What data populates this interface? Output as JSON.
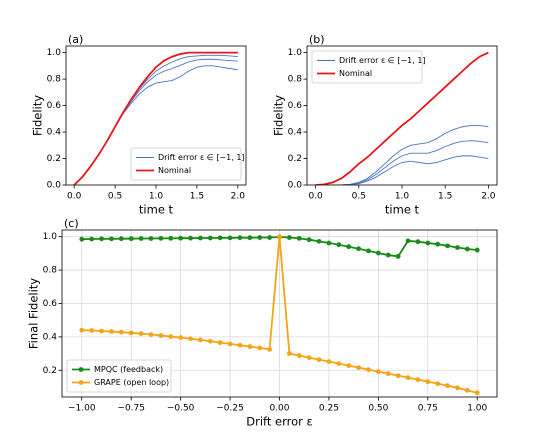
{
  "chart_data": [
    {
      "type": "line",
      "panel_label": "(a)",
      "xlabel": "time t",
      "ylabel": "Fidelity",
      "x": [
        0,
        0.1,
        0.2,
        0.3,
        0.4,
        0.5,
        0.6,
        0.7,
        0.8,
        0.9,
        1.0,
        1.1,
        1.2,
        1.3,
        1.4,
        1.5,
        1.6,
        1.7,
        1.8,
        1.9,
        2.0
      ],
      "series": [
        {
          "name": "Drift error ε ∈ [−1, 1]",
          "color": "#4a74c4",
          "values": [
            [
              0,
              0.06,
              0.14,
              0.23,
              0.33,
              0.44,
              0.54,
              0.62,
              0.69,
              0.74,
              0.77,
              0.78,
              0.79,
              0.82,
              0.86,
              0.89,
              0.9,
              0.9,
              0.89,
              0.88,
              0.87
            ],
            [
              0,
              0.06,
              0.14,
              0.23,
              0.33,
              0.44,
              0.545,
              0.635,
              0.715,
              0.78,
              0.83,
              0.86,
              0.88,
              0.905,
              0.93,
              0.945,
              0.95,
              0.95,
              0.945,
              0.94,
              0.935
            ],
            [
              0,
              0.06,
              0.14,
              0.23,
              0.33,
              0.44,
              0.55,
              0.645,
              0.73,
              0.8,
              0.86,
              0.9,
              0.93,
              0.955,
              0.97,
              0.975,
              0.98,
              0.98,
              0.98,
              0.975,
              0.97
            ]
          ]
        },
        {
          "name": "Nominal",
          "color": "#e8161b",
          "values": [
            0,
            0.06,
            0.14,
            0.23,
            0.33,
            0.44,
            0.55,
            0.65,
            0.74,
            0.82,
            0.89,
            0.94,
            0.97,
            0.99,
            1.0,
            1.0,
            1.0,
            1.0,
            1.0,
            1.0,
            1.0
          ]
        }
      ],
      "xlim": [
        -0.1,
        2.1
      ],
      "xticks": [
        {
          "value": 0,
          "label": "0.0"
        },
        0.5,
        {
          "value": 1,
          "label": "1.0"
        },
        1.5,
        {
          "value": 2,
          "label": "2.0"
        }
      ],
      "ylim": [
        0,
        1.05
      ],
      "yticks": [
        {
          "value": 0,
          "label": "0.0"
        },
        0.2,
        0.4,
        0.6,
        0.8,
        {
          "value": 1,
          "label": "1.0"
        }
      ],
      "grid": false,
      "legend": "lower right"
    },
    {
      "type": "line",
      "panel_label": "(b)",
      "xlabel": "time t",
      "ylabel": "Fidelity",
      "x": [
        0,
        0.1,
        0.2,
        0.3,
        0.4,
        0.5,
        0.6,
        0.7,
        0.8,
        0.9,
        1.0,
        1.1,
        1.2,
        1.3,
        1.4,
        1.5,
        1.6,
        1.7,
        1.8,
        1.9,
        2.0
      ],
      "series": [
        {
          "name": "Drift error ε ∈ [−1, 1]",
          "color": "#4a74c4",
          "values": [
            [
              0,
              0,
              0,
              0,
              0.005,
              0.02,
              0.05,
              0.1,
              0.16,
              0.22,
              0.27,
              0.3,
              0.31,
              0.32,
              0.35,
              0.39,
              0.42,
              0.44,
              0.45,
              0.45,
              0.44
            ],
            [
              0,
              0,
              0,
              0,
              0.004,
              0.015,
              0.04,
              0.08,
              0.13,
              0.18,
              0.22,
              0.24,
              0.24,
              0.24,
              0.26,
              0.29,
              0.315,
              0.33,
              0.335,
              0.33,
              0.32
            ],
            [
              0,
              0,
              0,
              0,
              0.003,
              0.01,
              0.03,
              0.06,
              0.1,
              0.14,
              0.17,
              0.18,
              0.17,
              0.16,
              0.17,
              0.19,
              0.21,
              0.22,
              0.22,
              0.21,
              0.2
            ]
          ]
        },
        {
          "name": "Nominal",
          "color": "#e8161b",
          "values": [
            0,
            0.005,
            0.02,
            0.05,
            0.1,
            0.16,
            0.21,
            0.27,
            0.33,
            0.39,
            0.45,
            0.5,
            0.56,
            0.62,
            0.68,
            0.74,
            0.8,
            0.86,
            0.92,
            0.97,
            1.0
          ]
        }
      ],
      "xlim": [
        -0.1,
        2.1
      ],
      "xticks": [
        {
          "value": 0,
          "label": "0.0"
        },
        0.5,
        {
          "value": 1,
          "label": "1.0"
        },
        1.5,
        {
          "value": 2,
          "label": "2.0"
        }
      ],
      "ylim": [
        0,
        1.05
      ],
      "yticks": [
        {
          "value": 0,
          "label": "0.0"
        },
        0.2,
        0.4,
        0.6,
        0.8,
        {
          "value": 1,
          "label": "1.0"
        }
      ],
      "grid": false,
      "legend": "upper left"
    },
    {
      "type": "line",
      "panel_label": "(c)",
      "xlabel": "Drift error ε",
      "ylabel": "Final Fidelity",
      "marker": "o",
      "x": [
        -1,
        -0.95,
        -0.9,
        -0.85,
        -0.8,
        -0.75,
        -0.7,
        -0.65,
        -0.6,
        -0.55,
        -0.5,
        -0.45,
        -0.4,
        -0.35,
        -0.3,
        -0.25,
        -0.2,
        -0.15,
        -0.1,
        -0.05,
        0,
        0.05,
        0.1,
        0.15,
        0.2,
        0.25,
        0.3,
        0.35,
        0.4,
        0.45,
        0.5,
        0.55,
        0.6,
        0.65,
        0.7,
        0.75,
        0.8,
        0.85,
        0.9,
        0.95,
        1
      ],
      "series": [
        {
          "name": "MPQC (feedback)",
          "color": "#1a8a1a",
          "values": [
            0.985,
            0.986,
            0.987,
            0.987,
            0.988,
            0.988,
            0.989,
            0.989,
            0.99,
            0.99,
            0.991,
            0.991,
            0.992,
            0.992,
            0.993,
            0.993,
            0.994,
            0.994,
            0.995,
            0.995,
            0.998,
            0.995,
            0.99,
            0.982,
            0.972,
            0.962,
            0.952,
            0.94,
            0.928,
            0.915,
            0.902,
            0.89,
            0.882,
            0.975,
            0.97,
            0.962,
            0.955,
            0.945,
            0.935,
            0.926,
            0.92
          ]
        },
        {
          "name": "GRAPE (open loop)",
          "color": "#f5a416",
          "values": [
            0.44,
            0.438,
            0.435,
            0.432,
            0.428,
            0.424,
            0.42,
            0.414,
            0.408,
            0.402,
            0.396,
            0.389,
            0.382,
            0.374,
            0.366,
            0.358,
            0.35,
            0.342,
            0.334,
            0.325,
            1.0,
            0.3,
            0.288,
            0.276,
            0.264,
            0.252,
            0.24,
            0.228,
            0.216,
            0.204,
            0.192,
            0.18,
            0.168,
            0.156,
            0.144,
            0.132,
            0.12,
            0.108,
            0.095,
            0.08,
            0.065
          ]
        }
      ],
      "xlim": [
        -1.1,
        1.1
      ],
      "xticks": [
        {
          "value": -1,
          "label": "−1.00"
        },
        {
          "value": -0.75,
          "label": "−0.75"
        },
        {
          "value": -0.5,
          "label": "−0.50"
        },
        {
          "value": -0.25,
          "label": "−0.25"
        },
        {
          "value": 0,
          "label": "0.00"
        },
        {
          "value": 0.25,
          "label": "0.25"
        },
        {
          "value": 0.5,
          "label": "0.50"
        },
        {
          "value": 0.75,
          "label": "0.75"
        },
        {
          "value": 1,
          "label": "1.00"
        }
      ],
      "ylim": [
        0.04,
        1.04
      ],
      "yticks": [
        0.2,
        0.4,
        0.6,
        0.8,
        {
          "value": 1,
          "label": "1.0"
        }
      ],
      "grid": true,
      "legend": "lower left"
    }
  ]
}
